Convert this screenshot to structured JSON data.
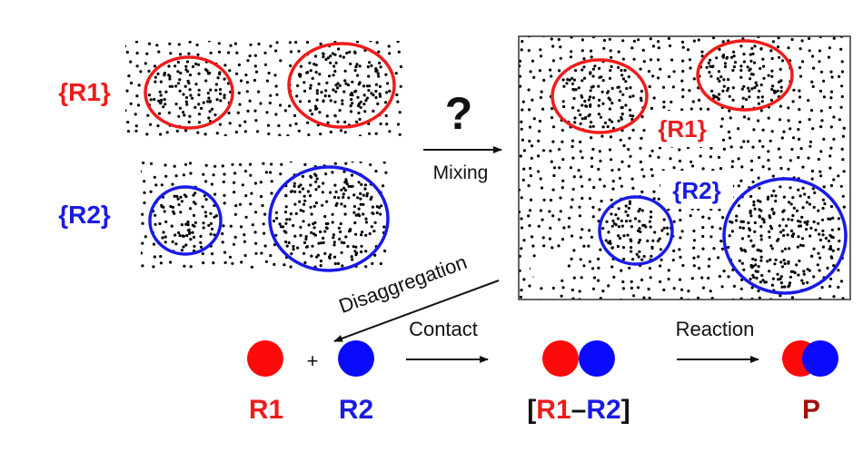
{
  "colors": {
    "r1": "#ee1c1c",
    "r2": "#1a1ae6",
    "product": "#a01010",
    "ink": "#111111",
    "dots": "#000000"
  },
  "labels": {
    "r1_set": "{R1}",
    "r2_set": "{R2}",
    "question": "?",
    "mixing": "Mixing",
    "mixed_r1": "{R1}",
    "mixed_r2": "{R2}",
    "disaggregation": "Disaggregation",
    "plus": "+",
    "contact": "Contact",
    "reaction": "Reaction",
    "r1": "R1",
    "r2": "R2",
    "complex_open": "[",
    "complex_r1": "R1",
    "complex_dash": "–",
    "complex_r2": "R2",
    "complex_close": "]",
    "product": "P"
  }
}
